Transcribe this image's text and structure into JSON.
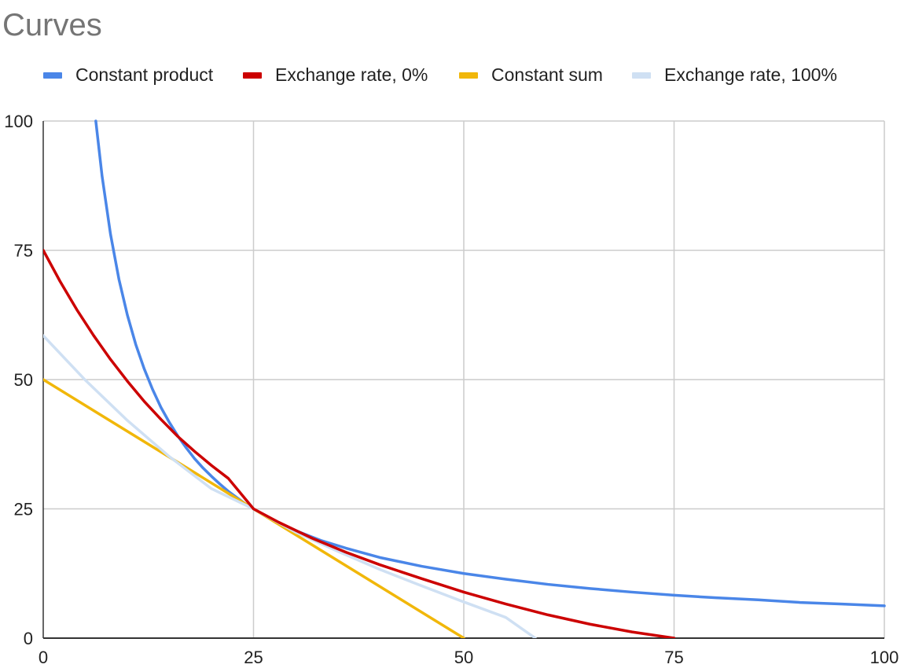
{
  "chart_data": {
    "type": "line",
    "title": "Curves",
    "xlabel": "",
    "ylabel": "",
    "xlim": [
      0,
      100
    ],
    "ylim": [
      0,
      100
    ],
    "x_ticks": [
      "0",
      "25",
      "50",
      "75",
      "100"
    ],
    "y_ticks": [
      "0",
      "25",
      "50",
      "75",
      "100"
    ],
    "grid": true,
    "legend_position": "top-left",
    "series": [
      {
        "name": "Constant product",
        "color": "#4a86e8",
        "x": [
          6.25,
          7,
          8,
          9,
          10,
          11,
          12,
          13,
          14,
          15,
          16,
          17,
          18,
          19,
          20,
          21,
          22,
          23,
          24,
          25,
          27,
          30,
          33,
          36,
          40,
          45,
          50,
          55,
          60,
          65,
          70,
          75,
          80,
          85,
          90,
          95,
          100
        ],
        "y": [
          100,
          89.3,
          78.1,
          69.4,
          62.5,
          56.8,
          52.1,
          48.1,
          44.6,
          41.7,
          39.1,
          36.8,
          34.7,
          32.9,
          31.3,
          29.8,
          28.4,
          27.2,
          26.0,
          25.0,
          23.1,
          20.8,
          18.9,
          17.4,
          15.6,
          13.9,
          12.5,
          11.4,
          10.4,
          9.6,
          8.9,
          8.3,
          7.8,
          7.4,
          6.9,
          6.6,
          6.25
        ]
      },
      {
        "name": "Exchange rate, 0%",
        "color": "#cc0000",
        "x": [
          0,
          2,
          4,
          6,
          8,
          10,
          12,
          14,
          16,
          18,
          20,
          22,
          25,
          28,
          32,
          36,
          40,
          45,
          50,
          55,
          60,
          65,
          70,
          75
        ],
        "y": [
          75,
          69.0,
          63.5,
          58.5,
          53.9,
          49.7,
          45.8,
          42.3,
          39.0,
          36.1,
          33.4,
          30.9,
          25.0,
          22.4,
          19.3,
          16.6,
          14.2,
          11.5,
          8.9,
          6.6,
          4.5,
          2.7,
          1.2,
          0
        ]
      },
      {
        "name": "Constant sum",
        "color": "#f1b70a",
        "x": [
          0,
          50
        ],
        "y": [
          50,
          0
        ]
      },
      {
        "name": "Exchange rate, 100%",
        "color": "#cfe0f3",
        "x": [
          0,
          5,
          10,
          15,
          20,
          25,
          30,
          35,
          40,
          45,
          50,
          55,
          58.5
        ],
        "y": [
          58.5,
          49.9,
          42.1,
          35.1,
          28.9,
          25.0,
          20.5,
          16.8,
          13.3,
          10.1,
          7.0,
          4.0,
          0
        ]
      }
    ]
  }
}
